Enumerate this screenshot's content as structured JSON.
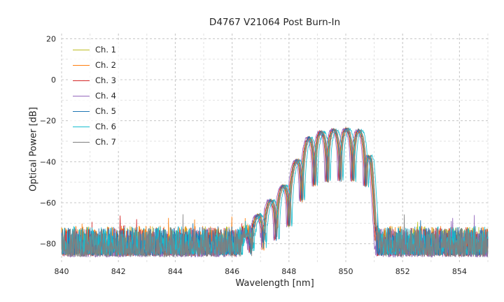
{
  "chart_data": {
    "type": "line",
    "title": "D4767 V21064 Post Burn-In",
    "xlabel": "Wavelength [nm]",
    "ylabel": "Optical Power [dB]",
    "xlim": [
      840,
      855
    ],
    "ylim": [
      -90,
      22.5
    ],
    "x_ticks": [
      840,
      842,
      844,
      846,
      848,
      850,
      852,
      854
    ],
    "y_ticks": [
      20,
      0,
      -20,
      -40,
      -60,
      -80
    ],
    "x_minor_step": 1,
    "y_minor_step": 10,
    "grid": true,
    "grid_style": "dashed",
    "legend_position": "upper left",
    "noise_floor_db": {
      "mean": -86,
      "spread": 14,
      "spike_chance": 0.012,
      "spike_db": 7
    },
    "ripple_period_nm": 0.45,
    "ripple_peak_ref_nm": 849.575,
    "ripple_min_depth_db": -25,
    "signal_band_nm": [
      846.3,
      851.1
    ],
    "envelope_points": [
      [
        846.3,
        -80
      ],
      [
        846.9,
        -66
      ],
      [
        847.4,
        -58
      ],
      [
        847.9,
        -50
      ],
      [
        848.3,
        -38
      ],
      [
        848.7,
        -28
      ],
      [
        849.1,
        -25.5
      ],
      [
        849.5,
        -24.5
      ],
      [
        850.0,
        -24
      ],
      [
        850.45,
        -24.5
      ],
      [
        850.7,
        -27
      ],
      [
        850.9,
        -40
      ],
      [
        851.0,
        -60
      ],
      [
        851.1,
        -80
      ]
    ],
    "series": [
      {
        "name": "Ch. 1",
        "color": "#bcbd22",
        "wavelength_offset_nm": -0.02,
        "noise_offset_db": 0.5,
        "seed": 101
      },
      {
        "name": "Ch. 2",
        "color": "#ff7f0e",
        "wavelength_offset_nm": 0.02,
        "noise_offset_db": 0.8,
        "seed": 202
      },
      {
        "name": "Ch. 3",
        "color": "#d62728",
        "wavelength_offset_nm": -0.04,
        "noise_offset_db": 0.0,
        "seed": 303
      },
      {
        "name": "Ch. 4",
        "color": "#9467bd",
        "wavelength_offset_nm": -0.08,
        "noise_offset_db": -0.5,
        "seed": 404
      },
      {
        "name": "Ch. 5",
        "color": "#1f77b4",
        "wavelength_offset_nm": 0.0,
        "noise_offset_db": 0.3,
        "seed": 505
      },
      {
        "name": "Ch. 6",
        "color": "#17becf",
        "wavelength_offset_nm": 0.1,
        "noise_offset_db": 0.6,
        "seed": 606
      },
      {
        "name": "Ch. 7",
        "color": "#7f7f7f",
        "wavelength_offset_nm": 0.04,
        "noise_offset_db": -0.3,
        "seed": 707
      }
    ]
  }
}
